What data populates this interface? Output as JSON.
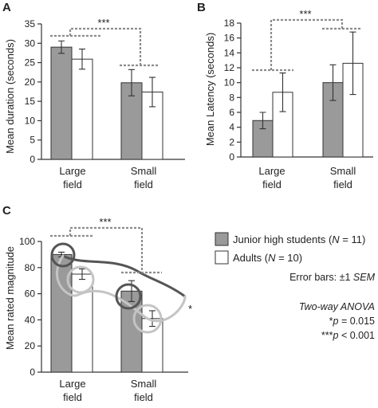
{
  "colors": {
    "junior_fill": "#9a9a9a",
    "adult_fill": "#ffffff",
    "bar_stroke": "#333333",
    "bracket": "#8c8c8c",
    "curve_dark": "#555555",
    "curve_light": "#c4c4c4"
  },
  "chart_data": [
    {
      "panel": "A",
      "type": "bar",
      "ylabel": "Mean duration (seconds)",
      "categories": [
        [
          "Large",
          "field"
        ],
        [
          "Small",
          "field"
        ]
      ],
      "ylim": [
        0,
        35
      ],
      "yticks": [
        0,
        5,
        10,
        15,
        20,
        25,
        30,
        35
      ],
      "series": [
        {
          "name": "Junior high students (N = 11)",
          "values": [
            29.0,
            19.8
          ],
          "errors": [
            1.6,
            3.4
          ]
        },
        {
          "name": "Adults (N = 10)",
          "values": [
            25.9,
            17.4
          ],
          "errors": [
            2.6,
            3.8
          ]
        }
      ],
      "significance": "***"
    },
    {
      "panel": "B",
      "type": "bar",
      "ylabel": "Mean Latency (seconds)",
      "categories": [
        [
          "Large",
          "field"
        ],
        [
          "Small",
          "field"
        ]
      ],
      "ylim": [
        0,
        18
      ],
      "yticks": [
        0,
        2,
        4,
        6,
        8,
        10,
        12,
        14,
        16,
        18
      ],
      "series": [
        {
          "name": "Junior high students (N = 11)",
          "values": [
            4.9,
            10.0
          ],
          "errors": [
            1.1,
            2.4
          ]
        },
        {
          "name": "Adults (N = 10)",
          "values": [
            8.7,
            12.6
          ],
          "errors": [
            2.6,
            4.2
          ]
        }
      ],
      "significance": "***"
    },
    {
      "panel": "C",
      "type": "bar",
      "ylabel": "Mean rated magnitude",
      "categories": [
        [
          "Large",
          "field"
        ],
        [
          "Small",
          "field"
        ]
      ],
      "ylim": [
        0,
        100
      ],
      "yticks": [
        0,
        20,
        40,
        60,
        80,
        100
      ],
      "series": [
        {
          "name": "Junior high students (N = 11)",
          "values": [
            90,
            62
          ],
          "errors": [
            1.8,
            8
          ]
        },
        {
          "name": "Adults (N = 10)",
          "values": [
            75,
            41
          ],
          "errors": [
            4,
            6
          ]
        }
      ],
      "significance": "***",
      "interaction_marker": "*"
    }
  ],
  "legend": {
    "junior": {
      "text": "Junior high students (",
      "n_label": "N",
      "n_value": " = 11)"
    },
    "adult": {
      "text": "Adults (",
      "n_label": "N",
      "n_value": " = 10)"
    }
  },
  "notes": {
    "error_bars": "Error bars: ±1 ",
    "sem": "SEM",
    "anova": "Two-way ANOVA",
    "p1_star": "*",
    "p_letter": "p",
    "p1_rest": " = 0.015",
    "p2_star": "***",
    "p2_rest": " < 0.001"
  }
}
